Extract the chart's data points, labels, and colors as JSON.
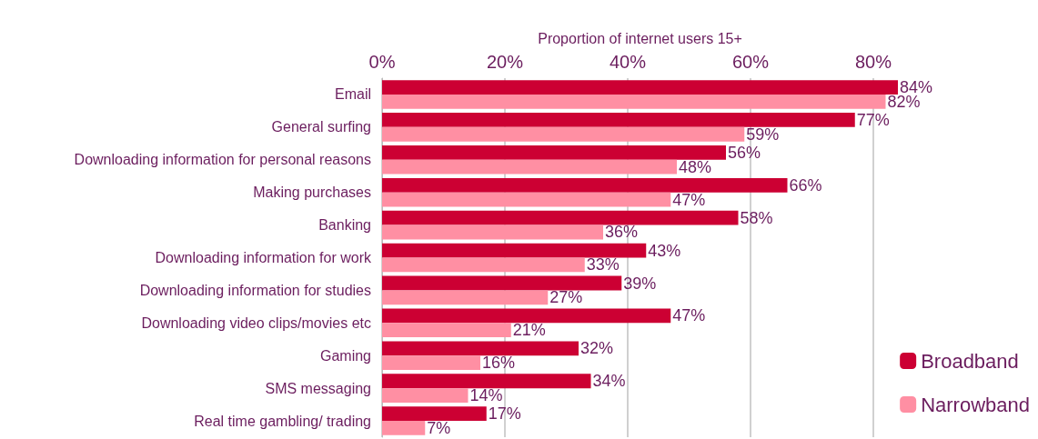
{
  "chart_data": {
    "type": "bar",
    "orientation": "horizontal",
    "xlabel": "Proportion of internet users 15+",
    "categories": [
      "Email",
      "General surfing",
      "Downloading information for personal reasons",
      "Making purchases",
      "Banking",
      "Downloading information for work",
      "Downloading information for studies",
      "Downloading video clips/movies etc",
      "Gaming",
      "SMS messaging",
      "Real time gambling/ trading"
    ],
    "series": [
      {
        "name": "Broadband",
        "color": "#cc0033",
        "values": [
          84,
          77,
          56,
          66,
          58,
          43,
          39,
          47,
          32,
          34,
          17
        ],
        "value_labels": [
          "84%",
          "77%",
          "56%",
          "66%",
          "58%",
          "43%",
          "39%",
          "47%",
          "32%",
          "34%",
          "17%"
        ]
      },
      {
        "name": "Narrowband",
        "color": "#ff8fa3",
        "values": [
          82,
          59,
          48,
          47,
          36,
          33,
          27,
          21,
          16,
          14,
          7
        ],
        "value_labels": [
          "82%",
          "59%",
          "48%",
          "47%",
          "36%",
          "33%",
          "27%",
          "21%",
          "16%",
          "14%",
          "7%"
        ]
      }
    ],
    "xlim": [
      0,
      84
    ],
    "xticks": [
      {
        "value": 0,
        "label": "0%"
      },
      {
        "value": 20,
        "label": "20%"
      },
      {
        "value": 40,
        "label": "40%"
      },
      {
        "value": 60,
        "label": "60%"
      },
      {
        "value": 80,
        "label": "80%"
      }
    ],
    "grid": "x",
    "legend": "bottom right"
  }
}
